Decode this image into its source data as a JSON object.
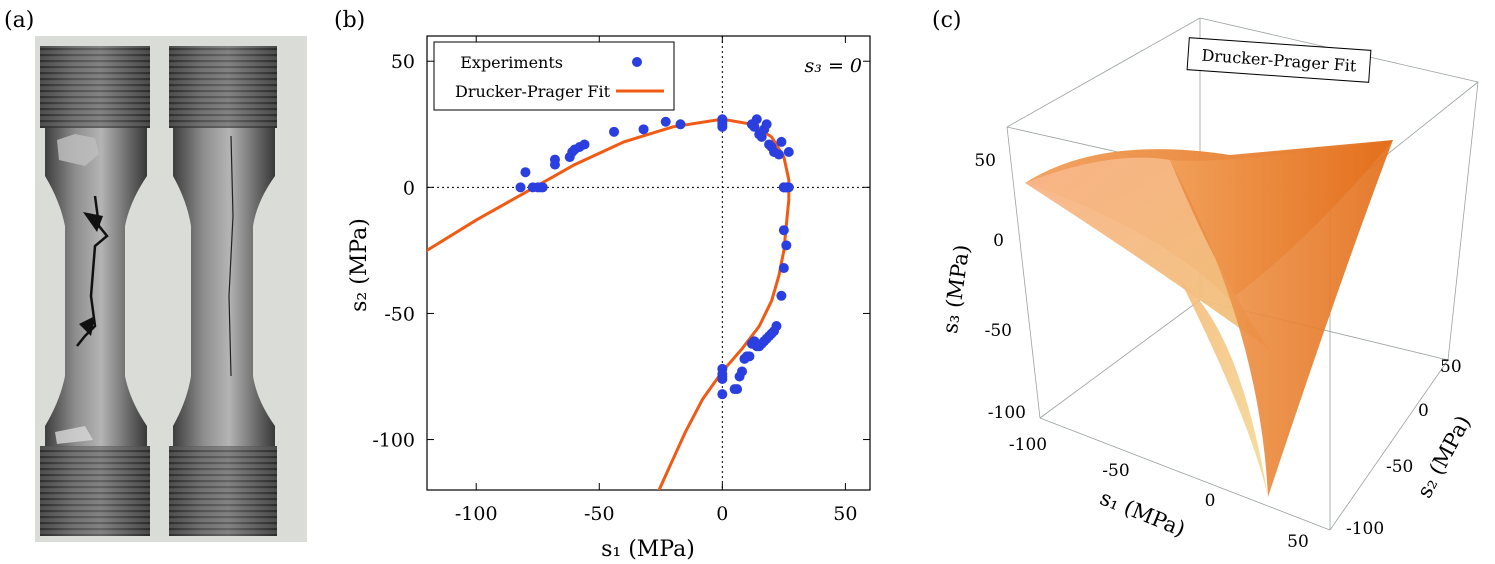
{
  "figure": {
    "panel_labels": [
      "(a)",
      "(b)",
      "(c)"
    ]
  },
  "colors": {
    "experiments": "#2b3fe0",
    "fit": "#f05a14",
    "surface_light": "#f7b07a",
    "surface_dark": "#e8751e",
    "specimen_dark": "#4a4a4a",
    "specimen_light": "#a8a8a8",
    "photo_bg": "#dadcd8"
  },
  "chart_data": [
    {
      "type": "scatter",
      "title": "",
      "annotation": "s₃ = 0",
      "xlabel": "s₁ (MPa)",
      "ylabel": "s₂ (MPa)",
      "xlim": [
        -120,
        60
      ],
      "ylim": [
        -120,
        60
      ],
      "xticks": [
        -100,
        -50,
        0,
        50
      ],
      "yticks": [
        -100,
        -50,
        0,
        50
      ],
      "xtick_labels": [
        "-100",
        "-50",
        "0",
        "50"
      ],
      "ytick_labels": [
        "-100",
        "-50",
        "0",
        "50"
      ],
      "legend": {
        "placement": "top-left",
        "entries": [
          "Experiments",
          "Drucker-Prager Fit"
        ]
      },
      "grid": "dotted zero lines",
      "series": [
        {
          "name": "Experiments",
          "kind": "scatter",
          "x": [
            -82,
            -80,
            -77,
            -75,
            -74,
            -73,
            -68,
            -68,
            -62,
            -61,
            -60,
            -58,
            -56,
            -44,
            -32,
            -23,
            -17,
            0,
            0,
            0,
            0,
            12,
            13,
            14,
            15,
            16,
            17,
            18,
            19,
            20,
            21,
            23,
            24,
            25,
            25,
            26,
            26,
            27,
            27,
            25,
            26,
            25,
            24,
            22,
            21,
            20,
            19,
            18,
            17,
            16,
            15,
            14,
            13,
            12,
            11,
            10,
            9,
            8,
            7,
            6,
            0,
            0,
            0,
            0,
            0,
            5
          ],
          "y": [
            0,
            6,
            0,
            0,
            0,
            0,
            9,
            11,
            12,
            14,
            15,
            16,
            17,
            22,
            23,
            26,
            25,
            27,
            26,
            25,
            24,
            25,
            24,
            27,
            21,
            20,
            23,
            25,
            17,
            16,
            14,
            13,
            18,
            0,
            0,
            0,
            0,
            0,
            14,
            -17,
            -23,
            -32,
            -43,
            -55,
            -57,
            -58,
            -59,
            -60,
            -61,
            -62,
            -63,
            -63,
            -61,
            -62,
            -67,
            -67,
            -68,
            -73,
            -75,
            -80,
            -72,
            -74,
            -75,
            -76,
            -82,
            -80
          ]
        },
        {
          "name": "Drucker-Prager Fit",
          "kind": "line"
        }
      ]
    },
    {
      "type": "surface3d",
      "legend": {
        "entries": [
          "Drucker-Prager Fit"
        ]
      },
      "xlabel": "s₁ (MPa)",
      "ylabel": "s₂ (MPa)",
      "zlabel": "s₃ (MPa)",
      "xtick_labels": [
        "-100",
        "-50",
        "0",
        "50"
      ],
      "ytick_labels": [
        "-100",
        "-50",
        "0",
        "50"
      ],
      "ztick_labels": [
        "50",
        "0",
        "-50",
        "-100"
      ]
    }
  ]
}
